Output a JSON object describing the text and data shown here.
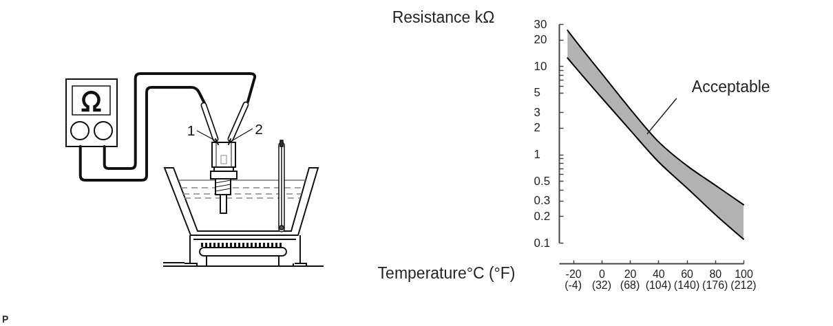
{
  "chart_data": {
    "type": "line",
    "xlabel": "Temperature°C (°F)",
    "ylabel": "Resistance kΩ",
    "x": [
      -24,
      -20,
      0,
      20,
      40,
      60,
      80,
      100
    ],
    "series": [
      {
        "color": "#000000",
        "values": [
          25.5,
          21,
          8.3,
          3.3,
          1.4,
          0.75,
          0.45,
          0.27
        ],
        "lower": [
          12.4,
          10.4,
          4.4,
          1.9,
          0.83,
          0.42,
          0.21,
          0.11
        ],
        "upper": [
          25.5,
          21,
          8.3,
          3.3,
          1.4,
          0.75,
          0.45,
          0.27
        ]
      },
      {
        "color": "#000000",
        "values": [
          12.4,
          10.4,
          4.4,
          1.9,
          0.83,
          0.42,
          0.21,
          0.11
        ]
      }
    ],
    "xlim": [
      -30,
      100
    ],
    "xticks": [
      -20,
      0,
      20,
      40,
      60,
      80,
      100
    ],
    "x2lim": [
      -22,
      212
    ],
    "x2ticks": [
      {
        "value": -4,
        "label": "(-4)"
      },
      {
        "value": 32,
        "label": "(32)"
      },
      {
        "value": 68,
        "label": "(68)"
      },
      {
        "value": 104,
        "label": "(104)"
      },
      {
        "value": 140,
        "label": "(140)"
      },
      {
        "value": 176,
        "label": "(176)"
      },
      {
        "value": 212,
        "label": "(212)"
      }
    ],
    "ylim": [
      0.1,
      30
    ],
    "yticks": [
      0.1,
      0.2,
      0.3,
      {
        "value": 0.4,
        "label": null
      },
      0.5,
      {
        "value": 0.6,
        "label": null
      },
      {
        "value": 0.7,
        "label": null
      },
      {
        "value": 0.8,
        "label": null
      },
      {
        "value": 0.9,
        "label": null
      },
      1,
      2,
      3,
      5,
      {
        "value": 6,
        "label": null
      },
      {
        "value": 7,
        "label": null
      },
      {
        "value": 8,
        "label": null
      },
      {
        "value": 9,
        "label": null
      },
      10,
      20,
      30
    ],
    "log": true,
    "annotations": [
      "1",
      "2",
      "P",
      {
        "text": "Acceptable",
        "x": 32,
        "y": 1.7
      }
    ]
  }
}
